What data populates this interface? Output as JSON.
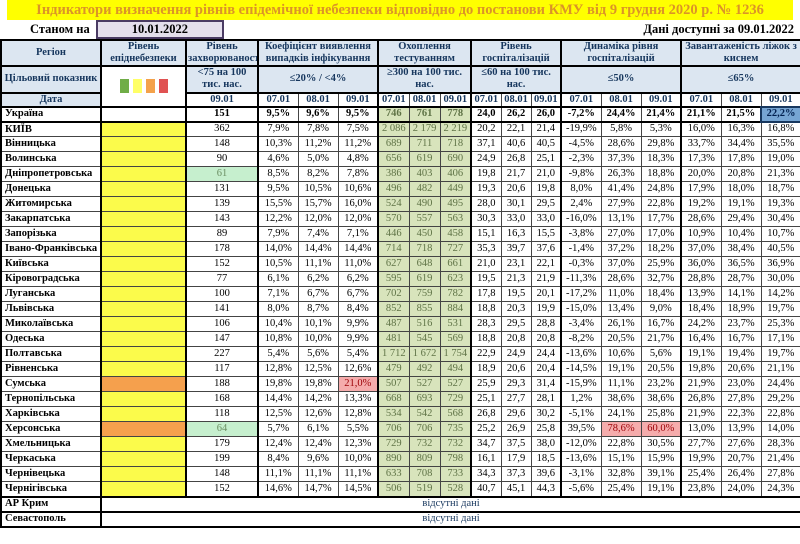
{
  "title": "Індикатори визначення рівнів епідемічної небезпеки відповідно до постанови КМУ від 9 грудня 2020 р. № 1236",
  "meta": {
    "as_of_label": "Станом на",
    "as_of_date": "10.01.2022",
    "available_label": "Дані доступні за 09.01.2022"
  },
  "colors": {
    "title_bg": "#FFFF00",
    "title_text": "#DB9427",
    "header_bg": "#DCE6F1",
    "header_text": "#17375E",
    "level_yellow": "#FBFB4B",
    "level_orange": "#F5A04D",
    "good_cell": "#C6EFCE",
    "test_cell": "#D8E4BC",
    "bad_cell": "#F5ACAC",
    "selected_cell": "#76A5D3",
    "legend": [
      "#70AD47",
      "#FFFF66",
      "#F4A24B",
      "#E05252"
    ]
  },
  "table": {
    "corner": {
      "region": "Регіон",
      "target": "Цільовий показник",
      "date": "Дата"
    },
    "groups": [
      {
        "name": "Рівень епіднебезпеки",
        "target": "",
        "dates": []
      },
      {
        "name": "Рівень захворюваності",
        "target": "<75 на 100 тис. нас.",
        "dates": [
          "09.01"
        ]
      },
      {
        "name": "Коефіцієнт виявлення випадків інфікування",
        "target": "≤20% / <4%",
        "dates": [
          "07.01",
          "08.01",
          "09.01"
        ]
      },
      {
        "name": "Охоплення тестуванням",
        "target": "≥300 на 100 тис. нас.",
        "dates": [
          "07.01",
          "08.01",
          "09.01"
        ]
      },
      {
        "name": "Рівень госпіталізацій",
        "target": "≤60 на 100 тис. нас.",
        "dates": [
          "07.01",
          "08.01",
          "09.01"
        ]
      },
      {
        "name": "Динаміка рівня госпіталізацій",
        "target": "≤50%",
        "dates": [
          "07.01",
          "08.01",
          "09.01"
        ]
      },
      {
        "name": "Завантаженість ліжок з киснем",
        "target": "≤65%",
        "dates": [
          "07.01",
          "08.01",
          "09.01"
        ]
      }
    ],
    "rows": [
      {
        "region": "Україна",
        "bold": true,
        "level": "",
        "sick": "151",
        "coef": [
          "9,5%",
          "9,6%",
          "9,5%"
        ],
        "test": [
          "746",
          "761",
          "778"
        ],
        "hosp": [
          "24,0",
          "26,2",
          "26,0"
        ],
        "dyn": [
          "-7,2%",
          "24,4%",
          "21,4%"
        ],
        "beds": [
          "21,1%",
          "21,5%",
          "22,2%"
        ],
        "bedsSel": [
          2
        ]
      },
      {
        "region": "КИЇВ",
        "level": "y",
        "sick": "362",
        "coef": [
          "7,9%",
          "7,8%",
          "7,5%"
        ],
        "test": [
          "2 086",
          "2 179",
          "2 219"
        ],
        "hosp": [
          "20,2",
          "22,1",
          "21,4"
        ],
        "dyn": [
          "-19,9%",
          "5,8%",
          "5,3%"
        ],
        "beds": [
          "16,0%",
          "16,3%",
          "16,8%"
        ]
      },
      {
        "region": "Вінницька",
        "level": "y",
        "sick": "148",
        "coef": [
          "10,3%",
          "11,2%",
          "11,2%"
        ],
        "test": [
          "689",
          "711",
          "718"
        ],
        "hosp": [
          "37,1",
          "40,6",
          "40,5"
        ],
        "dyn": [
          "-4,5%",
          "28,6%",
          "29,8%"
        ],
        "beds": [
          "33,7%",
          "34,4%",
          "35,5%"
        ]
      },
      {
        "region": "Волинська",
        "level": "y",
        "sick": "90",
        "coef": [
          "4,6%",
          "5,0%",
          "4,8%"
        ],
        "test": [
          "656",
          "619",
          "690"
        ],
        "hosp": [
          "24,9",
          "26,8",
          "25,1"
        ],
        "dyn": [
          "-2,3%",
          "37,3%",
          "18,3%"
        ],
        "beds": [
          "17,3%",
          "17,8%",
          "19,0%"
        ]
      },
      {
        "region": "Дніпропетровська",
        "level": "y",
        "sick": "61",
        "sickGood": true,
        "coef": [
          "8,5%",
          "8,2%",
          "7,8%"
        ],
        "test": [
          "386",
          "403",
          "406"
        ],
        "hosp": [
          "19,8",
          "21,7",
          "21,0"
        ],
        "dyn": [
          "-9,8%",
          "26,3%",
          "18,8%"
        ],
        "beds": [
          "20,0%",
          "20,8%",
          "21,3%"
        ]
      },
      {
        "region": "Донецька",
        "level": "y",
        "sick": "131",
        "coef": [
          "9,5%",
          "10,5%",
          "10,6%"
        ],
        "test": [
          "496",
          "482",
          "449"
        ],
        "hosp": [
          "19,3",
          "20,6",
          "19,8"
        ],
        "dyn": [
          "8,0%",
          "41,4%",
          "24,8%"
        ],
        "beds": [
          "17,9%",
          "18,0%",
          "18,7%"
        ]
      },
      {
        "region": "Житомирська",
        "level": "y",
        "sick": "139",
        "coef": [
          "15,5%",
          "15,7%",
          "16,0%"
        ],
        "test": [
          "524",
          "490",
          "495"
        ],
        "hosp": [
          "28,0",
          "30,1",
          "29,5"
        ],
        "dyn": [
          "2,4%",
          "27,9%",
          "22,8%"
        ],
        "beds": [
          "19,2%",
          "19,1%",
          "19,3%"
        ]
      },
      {
        "region": "Закарпатська",
        "level": "y",
        "sick": "143",
        "coef": [
          "12,2%",
          "12,0%",
          "12,0%"
        ],
        "test": [
          "570",
          "557",
          "563"
        ],
        "hosp": [
          "30,3",
          "33,0",
          "33,0"
        ],
        "dyn": [
          "-16,0%",
          "13,1%",
          "17,7%"
        ],
        "beds": [
          "28,6%",
          "29,4%",
          "30,4%"
        ]
      },
      {
        "region": "Запорізька",
        "level": "y",
        "sick": "89",
        "coef": [
          "7,9%",
          "7,4%",
          "7,1%"
        ],
        "test": [
          "446",
          "450",
          "458"
        ],
        "hosp": [
          "15,1",
          "16,3",
          "15,5"
        ],
        "dyn": [
          "-3,8%",
          "27,0%",
          "17,0%"
        ],
        "beds": [
          "10,9%",
          "10,4%",
          "10,7%"
        ]
      },
      {
        "region": "Івано-Франківська",
        "level": "y",
        "sick": "178",
        "coef": [
          "14,0%",
          "14,4%",
          "14,4%"
        ],
        "test": [
          "714",
          "718",
          "727"
        ],
        "hosp": [
          "35,3",
          "39,7",
          "37,6"
        ],
        "dyn": [
          "-1,4%",
          "37,2%",
          "18,2%"
        ],
        "beds": [
          "37,0%",
          "38,4%",
          "40,5%"
        ]
      },
      {
        "region": "Київська",
        "level": "y",
        "sick": "152",
        "coef": [
          "10,5%",
          "11,1%",
          "11,0%"
        ],
        "test": [
          "627",
          "648",
          "661"
        ],
        "hosp": [
          "21,0",
          "23,1",
          "22,1"
        ],
        "dyn": [
          "-0,3%",
          "37,0%",
          "25,9%"
        ],
        "beds": [
          "36,0%",
          "36,5%",
          "36,9%"
        ]
      },
      {
        "region": "Кіровоградська",
        "level": "y",
        "sick": "77",
        "coef": [
          "6,1%",
          "6,2%",
          "6,2%"
        ],
        "test": [
          "595",
          "619",
          "623"
        ],
        "hosp": [
          "19,5",
          "21,3",
          "21,9"
        ],
        "dyn": [
          "-11,3%",
          "28,6%",
          "32,7%"
        ],
        "beds": [
          "28,8%",
          "28,7%",
          "30,0%"
        ]
      },
      {
        "region": "Луганська",
        "level": "y",
        "sick": "100",
        "coef": [
          "7,1%",
          "6,7%",
          "6,7%"
        ],
        "test": [
          "702",
          "759",
          "782"
        ],
        "hosp": [
          "17,8",
          "19,5",
          "20,1"
        ],
        "dyn": [
          "-17,2%",
          "11,0%",
          "18,4%"
        ],
        "beds": [
          "13,9%",
          "14,1%",
          "14,2%"
        ]
      },
      {
        "region": "Львівська",
        "level": "y",
        "sick": "141",
        "coef": [
          "8,0%",
          "8,7%",
          "8,4%"
        ],
        "test": [
          "852",
          "855",
          "884"
        ],
        "hosp": [
          "18,8",
          "20,3",
          "19,9"
        ],
        "dyn": [
          "-15,0%",
          "13,4%",
          "9,0%"
        ],
        "beds": [
          "18,4%",
          "18,9%",
          "19,7%"
        ]
      },
      {
        "region": "Миколаївська",
        "level": "y",
        "sick": "106",
        "coef": [
          "10,4%",
          "10,1%",
          "9,9%"
        ],
        "test": [
          "487",
          "516",
          "531"
        ],
        "hosp": [
          "28,3",
          "29,5",
          "28,8"
        ],
        "dyn": [
          "-3,4%",
          "26,1%",
          "16,7%"
        ],
        "beds": [
          "24,2%",
          "23,7%",
          "25,3%"
        ]
      },
      {
        "region": "Одеська",
        "level": "y",
        "sick": "147",
        "coef": [
          "10,8%",
          "10,0%",
          "9,9%"
        ],
        "test": [
          "481",
          "545",
          "569"
        ],
        "hosp": [
          "18,8",
          "20,8",
          "20,8"
        ],
        "dyn": [
          "-8,2%",
          "20,5%",
          "21,7%"
        ],
        "beds": [
          "16,4%",
          "16,7%",
          "17,1%"
        ]
      },
      {
        "region": "Полтавська",
        "level": "y",
        "sick": "227",
        "coef": [
          "5,4%",
          "5,6%",
          "5,4%"
        ],
        "test": [
          "1 712",
          "1 672",
          "1 754"
        ],
        "hosp": [
          "22,9",
          "24,9",
          "24,4"
        ],
        "dyn": [
          "-13,6%",
          "10,6%",
          "5,6%"
        ],
        "beds": [
          "19,1%",
          "19,4%",
          "19,7%"
        ]
      },
      {
        "region": "Рівненська",
        "level": "y",
        "sick": "117",
        "coef": [
          "12,8%",
          "12,5%",
          "12,6%"
        ],
        "test": [
          "479",
          "492",
          "494"
        ],
        "hosp": [
          "18,9",
          "20,6",
          "20,4"
        ],
        "dyn": [
          "-14,5%",
          "19,1%",
          "20,5%"
        ],
        "beds": [
          "19,8%",
          "20,6%",
          "21,1%"
        ]
      },
      {
        "region": "Сумська",
        "level": "o",
        "sick": "188",
        "coef": [
          "19,8%",
          "19,8%",
          "21,0%"
        ],
        "coefBad": [
          2
        ],
        "test": [
          "507",
          "527",
          "527"
        ],
        "hosp": [
          "25,9",
          "29,3",
          "31,4"
        ],
        "dyn": [
          "-15,9%",
          "11,1%",
          "23,2%"
        ],
        "beds": [
          "21,9%",
          "23,0%",
          "24,4%"
        ]
      },
      {
        "region": "Тернопільська",
        "level": "y",
        "sick": "168",
        "coef": [
          "14,4%",
          "14,2%",
          "13,3%"
        ],
        "test": [
          "668",
          "693",
          "729"
        ],
        "hosp": [
          "25,1",
          "27,7",
          "28,1"
        ],
        "dyn": [
          "1,2%",
          "38,6%",
          "38,6%"
        ],
        "beds": [
          "26,8%",
          "27,8%",
          "29,2%"
        ]
      },
      {
        "region": "Харківська",
        "level": "y",
        "sick": "118",
        "coef": [
          "12,5%",
          "12,6%",
          "12,8%"
        ],
        "test": [
          "534",
          "542",
          "568"
        ],
        "hosp": [
          "26,8",
          "29,6",
          "30,2"
        ],
        "dyn": [
          "-5,1%",
          "24,1%",
          "25,8%"
        ],
        "beds": [
          "21,9%",
          "22,3%",
          "22,8%"
        ]
      },
      {
        "region": "Херсонська",
        "level": "o",
        "sick": "64",
        "sickGood": true,
        "coef": [
          "5,7%",
          "6,1%",
          "5,5%"
        ],
        "test": [
          "706",
          "706",
          "735"
        ],
        "hosp": [
          "25,2",
          "26,9",
          "25,8"
        ],
        "dyn": [
          "39,5%",
          "78,6%",
          "60,0%"
        ],
        "dynBad": [
          1,
          2
        ],
        "beds": [
          "13,0%",
          "13,9%",
          "14,0%"
        ]
      },
      {
        "region": "Хмельницька",
        "level": "y",
        "sick": "179",
        "coef": [
          "12,4%",
          "12,4%",
          "12,3%"
        ],
        "test": [
          "729",
          "732",
          "732"
        ],
        "hosp": [
          "34,7",
          "37,5",
          "38,0"
        ],
        "dyn": [
          "-12,0%",
          "22,8%",
          "30,5%"
        ],
        "beds": [
          "27,7%",
          "27,6%",
          "28,3%"
        ]
      },
      {
        "region": "Черкаська",
        "level": "y",
        "sick": "199",
        "coef": [
          "8,4%",
          "9,6%",
          "10,0%"
        ],
        "test": [
          "890",
          "809",
          "798"
        ],
        "hosp": [
          "16,1",
          "17,9",
          "18,5"
        ],
        "dyn": [
          "-13,6%",
          "15,1%",
          "15,9%"
        ],
        "beds": [
          "19,9%",
          "20,7%",
          "21,4%"
        ]
      },
      {
        "region": "Чернівецька",
        "level": "y",
        "sick": "148",
        "coef": [
          "11,1%",
          "11,1%",
          "11,1%"
        ],
        "test": [
          "633",
          "708",
          "733"
        ],
        "hosp": [
          "34,3",
          "37,3",
          "39,6"
        ],
        "dyn": [
          "-3,1%",
          "32,8%",
          "39,1%"
        ],
        "beds": [
          "25,4%",
          "26,4%",
          "27,8%"
        ]
      },
      {
        "region": "Чернігівська",
        "level": "y",
        "sick": "152",
        "coef": [
          "14,6%",
          "14,7%",
          "14,5%"
        ],
        "test": [
          "506",
          "519",
          "528"
        ],
        "hosp": [
          "40,7",
          "45,1",
          "44,3"
        ],
        "dyn": [
          "-5,6%",
          "25,4%",
          "19,1%"
        ],
        "beds": [
          "23,8%",
          "24,0%",
          "24,3%"
        ]
      }
    ],
    "no_data_rows": [
      {
        "region": "АР Крим",
        "text": "відсутні дані"
      },
      {
        "region": "Севастополь",
        "text": "відсутні дані"
      }
    ]
  }
}
